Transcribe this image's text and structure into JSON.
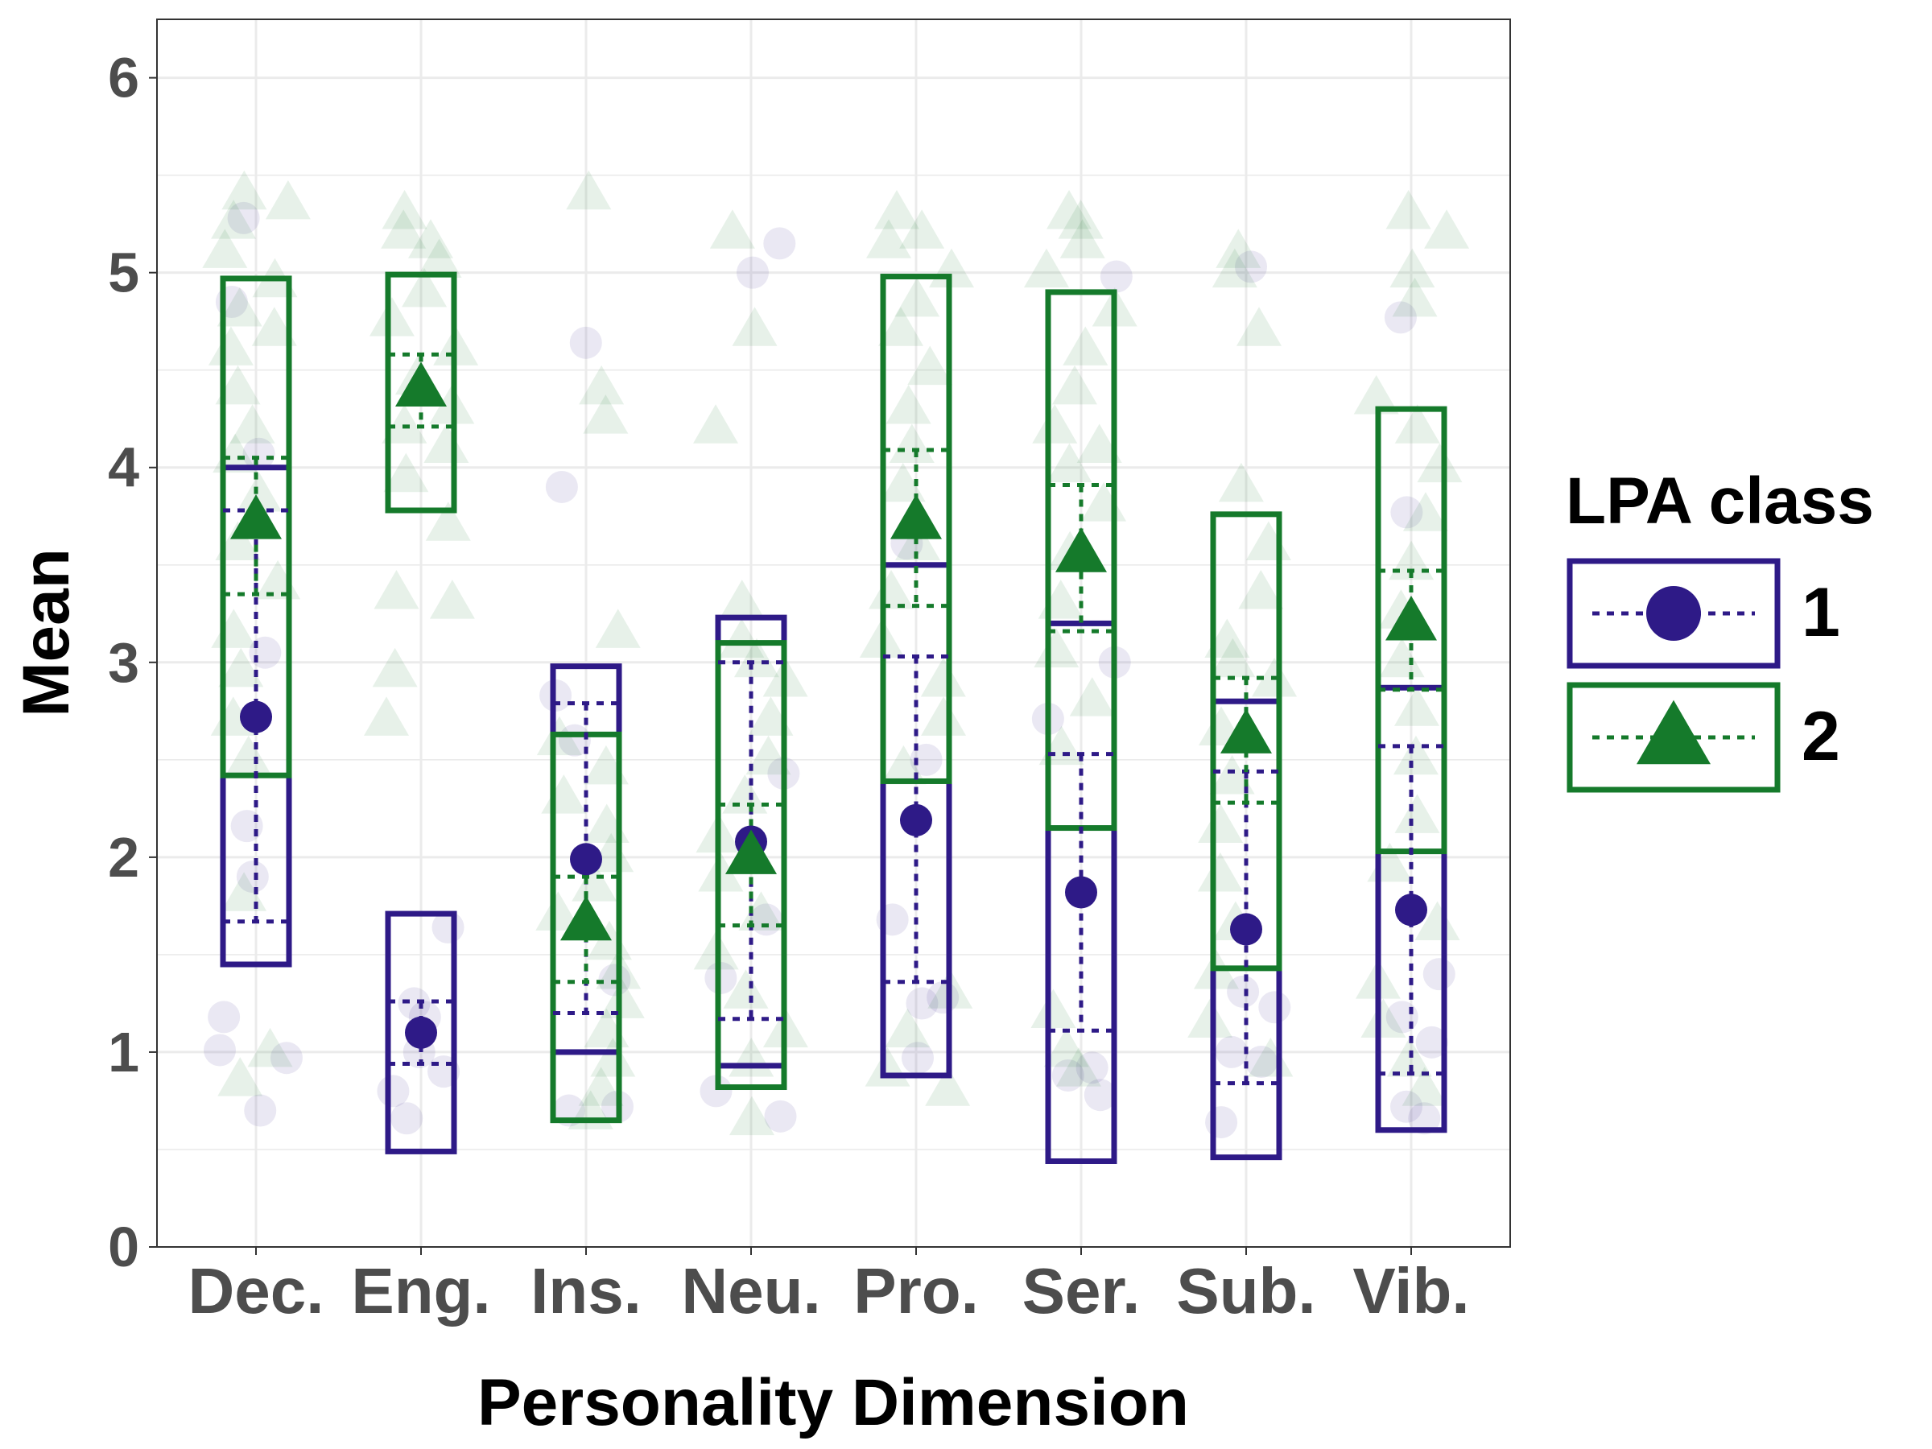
{
  "chart_data": {
    "type": "scatter",
    "xlabel": "Personality Dimension",
    "ylabel": "Mean",
    "ylim": [
      0,
      6.3
    ],
    "yticks": [
      0,
      1,
      2,
      3,
      4,
      5,
      6
    ],
    "categories": [
      "Dec.",
      "Eng.",
      "Ins.",
      "Neu.",
      "Pro.",
      "Ser.",
      "Sub.",
      "Vib."
    ],
    "grid": true,
    "legend": {
      "title": "LPA class",
      "position": "right"
    },
    "series": [
      {
        "name": "1",
        "marker": "circle",
        "color": "#2e1a87",
        "mean": [
          2.72,
          1.1,
          1.99,
          2.08,
          2.19,
          1.82,
          1.63,
          1.73
        ],
        "ci_low": [
          1.67,
          0.94,
          1.2,
          1.17,
          1.36,
          1.11,
          0.84,
          0.89
        ],
        "ci_high": [
          3.78,
          1.26,
          2.79,
          3.0,
          3.03,
          2.53,
          2.44,
          2.57
        ],
        "range_low": [
          1.45,
          0.49,
          1.0,
          0.93,
          0.88,
          0.44,
          0.46,
          0.6
        ],
        "range_high": [
          4.0,
          1.71,
          2.98,
          3.23,
          3.5,
          3.2,
          2.8,
          2.87
        ],
        "points": [
          [
            1.01,
            0.97,
            1.18,
            0.7,
            2.16,
            1.9,
            3.05,
            4.85,
            5.28,
            4.07
          ],
          [
            0.66,
            0.8,
            0.9,
            1.18,
            1.25,
            1.64,
            1.0
          ],
          [
            0.7,
            0.72,
            2.83,
            3.9,
            4.64,
            1.37,
            2.6
          ],
          [
            0.67,
            0.8,
            1.38,
            1.68,
            5.0,
            5.15,
            2.43
          ],
          [
            1.25,
            1.68,
            0.97,
            3.61,
            1.28,
            2.5
          ],
          [
            0.78,
            0.88,
            0.92,
            2.71,
            4.98,
            3.0
          ],
          [
            0.64,
            1.0,
            1.23,
            1.31,
            5.03,
            0.95
          ],
          [
            0.66,
            0.72,
            1.05,
            1.18,
            4.77,
            3.77,
            1.4
          ]
        ]
      },
      {
        "name": "2",
        "marker": "triangle",
        "color": "#157a2b",
        "mean": [
          3.72,
          4.4,
          1.66,
          2.0,
          3.72,
          3.55,
          2.62,
          3.2
        ],
        "ci_low": [
          3.35,
          4.21,
          1.36,
          1.65,
          3.29,
          3.16,
          2.28,
          2.86
        ],
        "ci_high": [
          4.05,
          4.58,
          1.9,
          2.27,
          4.09,
          3.91,
          2.92,
          3.47
        ],
        "range_low": [
          2.42,
          3.78,
          0.65,
          0.82,
          2.39,
          2.15,
          1.43,
          2.03
        ],
        "range_high": [
          4.97,
          4.99,
          2.63,
          3.1,
          4.98,
          4.9,
          3.76,
          4.3
        ],
        "points": [
          [
            5.35,
            5.25,
            5.1,
            4.95,
            4.8,
            4.6,
            4.4,
            4.2,
            4.05,
            3.85,
            3.6,
            3.4,
            3.15,
            2.95,
            2.7,
            2.5,
            1.8,
            1.0,
            0.85,
            5.4,
            4.7
          ],
          [
            5.3,
            5.2,
            5.05,
            4.9,
            4.75,
            4.6,
            4.45,
            4.3,
            4.1,
            3.95,
            3.7,
            3.35,
            2.95,
            2.7,
            5.15,
            4.2,
            3.3
          ],
          [
            5.4,
            4.4,
            4.25,
            3.15,
            2.45,
            2.3,
            2.15,
            2.0,
            1.85,
            1.7,
            1.55,
            1.4,
            1.25,
            1.1,
            0.95,
            0.8,
            0.68,
            2.6
          ],
          [
            5.2,
            4.7,
            4.2,
            3.3,
            3.1,
            2.9,
            2.7,
            2.5,
            2.3,
            2.1,
            1.9,
            1.7,
            1.5,
            1.3,
            1.1,
            0.95,
            0.65,
            3.0
          ],
          [
            5.3,
            5.15,
            5.0,
            4.85,
            4.7,
            4.5,
            4.3,
            4.1,
            3.9,
            3.6,
            3.35,
            3.1,
            2.9,
            2.7,
            2.45,
            1.3,
            1.1,
            0.9,
            0.8,
            5.2
          ],
          [
            5.3,
            5.15,
            5.0,
            4.8,
            4.6,
            4.4,
            4.2,
            4.0,
            3.8,
            3.55,
            3.3,
            3.05,
            2.8,
            2.55,
            1.2,
            1.0,
            0.9,
            5.25,
            4.1
          ],
          [
            5.1,
            5.0,
            4.7,
            3.9,
            3.6,
            3.35,
            3.1,
            2.9,
            2.65,
            2.4,
            2.15,
            1.9,
            1.65,
            1.4,
            1.15,
            0.95,
            3.0
          ],
          [
            5.3,
            5.2,
            5.0,
            4.85,
            4.35,
            4.2,
            4.0,
            3.75,
            3.5,
            3.25,
            3.0,
            2.75,
            2.5,
            2.2,
            1.95,
            1.65,
            1.35,
            1.15,
            0.95,
            0.8
          ]
        ]
      }
    ]
  }
}
